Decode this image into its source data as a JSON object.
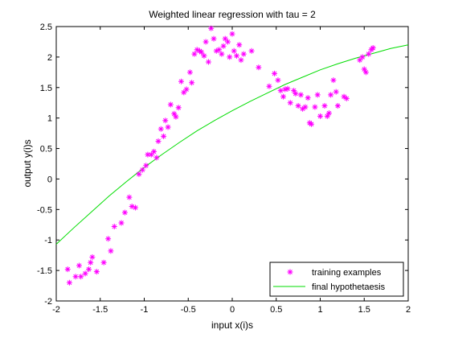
{
  "chart_data": {
    "type": "scatter",
    "title": "Weighted linear regression with tau = 2",
    "xlabel": "input x(i)s",
    "ylabel": "output y(i)s",
    "xlim": [
      -2,
      2
    ],
    "ylim": [
      -2,
      2.5
    ],
    "grid": false,
    "legend_position": "bottom-right",
    "x_ticks": [
      "-2",
      "-1.5",
      "-1",
      "-0.5",
      "0",
      "0.5",
      "1",
      "1.5",
      "2"
    ],
    "y_ticks": [
      "-2",
      "-1.5",
      "-1",
      "-0.5",
      "0",
      "0.5",
      "1",
      "1.5",
      "2",
      "2.5"
    ],
    "colors": {
      "training": "#ff00ff",
      "hypothesis": "#00dd00"
    },
    "series": [
      {
        "name": "training examples",
        "kind": "scatter",
        "marker": "asterisk",
        "x": [
          -1.87,
          -1.85,
          -1.78,
          -1.74,
          -1.72,
          -1.67,
          -1.63,
          -1.61,
          -1.59,
          -1.54,
          -1.46,
          -1.41,
          -1.38,
          -1.34,
          -1.26,
          -1.22,
          -1.17,
          -1.14,
          -1.1,
          -1.06,
          -1.02,
          -0.98,
          -0.96,
          -0.92,
          -0.89,
          -0.86,
          -0.84,
          -0.81,
          -0.78,
          -0.76,
          -0.73,
          -0.7,
          -0.66,
          -0.64,
          -0.61,
          -0.58,
          -0.55,
          -0.52,
          -0.48,
          -0.46,
          -0.43,
          -0.4,
          -0.37,
          -0.35,
          -0.32,
          -0.3,
          -0.27,
          -0.24,
          -0.21,
          -0.18,
          -0.15,
          -0.12,
          -0.1,
          -0.08,
          -0.05,
          -0.03,
          0.0,
          0.02,
          0.05,
          0.08,
          0.1,
          0.13,
          0.22,
          0.3,
          0.42,
          0.48,
          0.52,
          0.55,
          0.58,
          0.6,
          0.63,
          0.66,
          0.7,
          0.72,
          0.75,
          0.78,
          0.8,
          0.83,
          0.86,
          0.88,
          0.9,
          0.94,
          0.97,
          1.0,
          1.05,
          1.08,
          1.1,
          1.12,
          1.15,
          1.18,
          1.2,
          1.27,
          1.3,
          1.45,
          1.48,
          1.5,
          1.52,
          1.55,
          1.58,
          1.6
        ],
        "y": [
          -1.48,
          -1.7,
          -1.6,
          -1.42,
          -1.6,
          -1.55,
          -1.48,
          -1.37,
          -1.28,
          -1.52,
          -1.37,
          -0.98,
          -1.18,
          -0.78,
          -0.72,
          -0.55,
          -0.3,
          -0.45,
          -0.47,
          0.08,
          0.15,
          0.22,
          0.4,
          0.4,
          0.45,
          0.35,
          0.62,
          0.82,
          0.7,
          0.96,
          0.85,
          1.22,
          1.07,
          1.02,
          1.17,
          1.6,
          1.42,
          1.47,
          1.75,
          1.58,
          2.05,
          2.12,
          2.1,
          2.08,
          2.02,
          2.25,
          1.92,
          2.47,
          2.3,
          2.1,
          2.12,
          2.05,
          2.18,
          2.3,
          2.25,
          2.0,
          2.38,
          2.1,
          2.02,
          2.2,
          1.95,
          2.05,
          2.1,
          1.83,
          1.52,
          1.73,
          1.62,
          1.45,
          1.35,
          1.47,
          1.48,
          1.25,
          1.45,
          1.4,
          1.2,
          1.38,
          1.15,
          1.18,
          1.33,
          0.92,
          0.9,
          1.18,
          1.38,
          1.03,
          1.2,
          1.03,
          1.08,
          1.38,
          1.62,
          1.43,
          1.2,
          1.35,
          1.32,
          1.95,
          2.0,
          1.8,
          1.75,
          2.05,
          2.12,
          2.15
        ]
      },
      {
        "name": "final hypothetaesis",
        "kind": "line",
        "x": [
          -2.0,
          -1.8,
          -1.6,
          -1.4,
          -1.2,
          -1.0,
          -0.8,
          -0.6,
          -0.4,
          -0.2,
          0.0,
          0.2,
          0.4,
          0.6,
          0.8,
          1.0,
          1.2,
          1.4,
          1.6,
          1.8,
          2.0
        ],
        "y": [
          -1.07,
          -0.8,
          -0.54,
          -0.28,
          -0.04,
          0.19,
          0.4,
          0.6,
          0.79,
          0.96,
          1.12,
          1.27,
          1.41,
          1.55,
          1.67,
          1.79,
          1.89,
          1.98,
          2.06,
          2.14,
          2.2
        ]
      }
    ]
  }
}
